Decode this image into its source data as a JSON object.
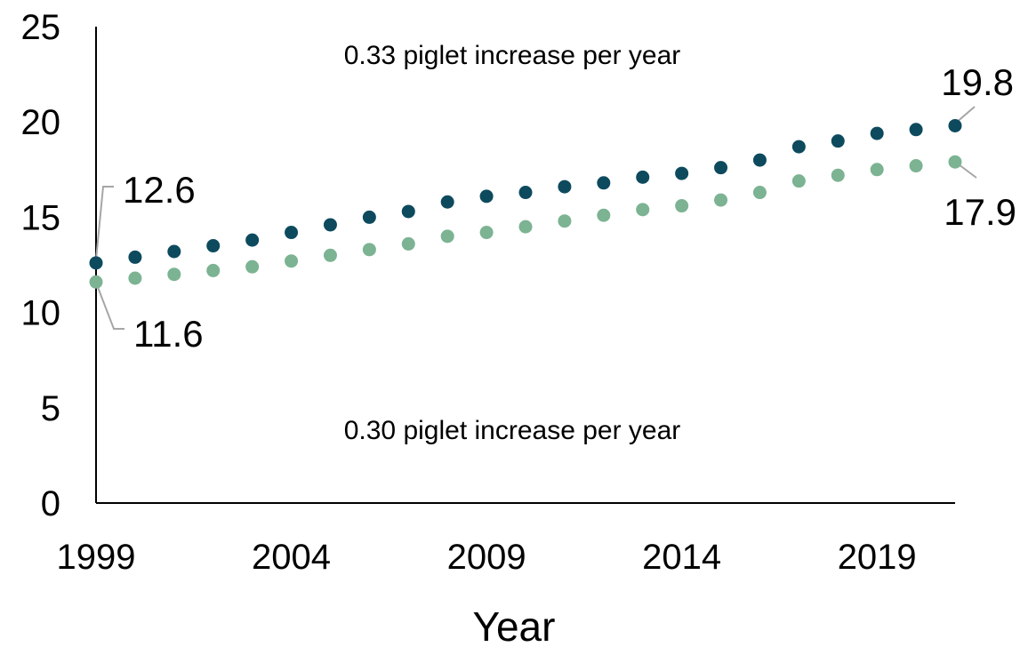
{
  "chart_data": {
    "type": "scatter",
    "x": [
      1999,
      2000,
      2001,
      2002,
      2003,
      2004,
      2005,
      2006,
      2007,
      2008,
      2009,
      2010,
      2011,
      2012,
      2013,
      2014,
      2015,
      2016,
      2017,
      2018,
      2019,
      2020,
      2021
    ],
    "series": [
      {
        "color": "#0d4a5e",
        "values": [
          12.6,
          12.9,
          13.2,
          13.5,
          13.8,
          14.2,
          14.6,
          15.0,
          15.3,
          15.8,
          16.1,
          16.3,
          16.6,
          16.8,
          17.1,
          17.3,
          17.6,
          18.0,
          18.7,
          19.0,
          19.4,
          19.6,
          19.8
        ]
      },
      {
        "color": "#7cb392",
        "values": [
          11.6,
          11.8,
          12.0,
          12.2,
          12.4,
          12.7,
          13.0,
          13.3,
          13.6,
          14.0,
          14.2,
          14.5,
          14.8,
          15.1,
          15.4,
          15.6,
          15.9,
          16.3,
          16.9,
          17.2,
          17.5,
          17.7,
          17.9
        ]
      }
    ],
    "xlabel": "Year",
    "ylabel": "",
    "xlim": [
      1999,
      2021
    ],
    "ylim": [
      0,
      25
    ],
    "x_ticks": [
      "1999",
      "2004",
      "2009",
      "2014",
      "2019"
    ],
    "y_ticks": [
      "0",
      "5",
      "10",
      "15",
      "20",
      "25"
    ],
    "grid": false,
    "annotations": {
      "top_note": "0.33 piglet increase per year",
      "bottom_note": "0.30 piglet increase per year",
      "start_top": "12.6",
      "start_bottom": "11.6",
      "end_top": "19.8",
      "end_bottom": "17.9"
    }
  }
}
